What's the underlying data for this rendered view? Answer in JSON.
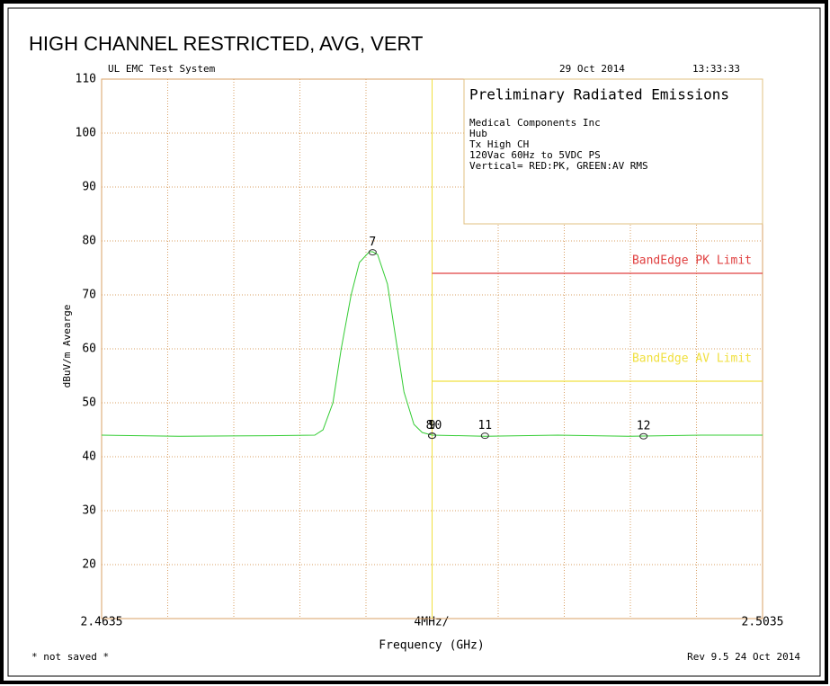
{
  "chart_data": {
    "type": "line",
    "title": "HIGH CHANNEL RESTRICTED, AVG, VERT",
    "system": "UL EMC Test System",
    "date": "29 Oct 2014",
    "time": "13:33:33",
    "info_box": {
      "title": "Preliminary Radiated Emissions",
      "lines": [
        "Medical Components Inc",
        "Hub",
        "Tx High CH",
        "120Vac 60Hz to 5VDC PS",
        "Vertical= RED:PK, GREEN:AV RMS"
      ]
    },
    "xlabel": "Frequency (GHz)",
    "ylabel": "dBuV/m Avearge",
    "span_label": "4MHz/",
    "footer_left": "* not saved *",
    "footer_right": "Rev 9.5 24 Oct 2014",
    "xlim": [
      2.4635,
      2.5035
    ],
    "ylim": [
      10,
      110
    ],
    "xticks": [
      2.4635,
      2.5035
    ],
    "xgrid": [
      2.4675,
      2.4715,
      2.4755,
      2.4795,
      2.4835,
      2.4875,
      2.4915,
      2.4955,
      2.4995
    ],
    "yticks": [
      20,
      30,
      40,
      50,
      60,
      70,
      80,
      90,
      100,
      110
    ],
    "grid": true,
    "grid_color": "#d9a066",
    "series": [
      {
        "color": "#33cc33",
        "x": [
          2.4635,
          2.4682,
          2.4737,
          2.4764,
          2.4769,
          2.4775,
          2.478,
          2.4786,
          2.4791,
          2.4797,
          2.4799,
          2.4802,
          2.4808,
          2.4813,
          2.4818,
          2.4824,
          2.4829,
          2.4835,
          2.4867,
          2.4911,
          2.4954,
          2.4998,
          2.5035
        ],
        "values": [
          44,
          43.8,
          43.9,
          44,
          45,
          50,
          60,
          70,
          76,
          78,
          78,
          77.5,
          72,
          62,
          52,
          46,
          44.5,
          44,
          43.8,
          44,
          43.8,
          44,
          44
        ]
      }
    ],
    "limits": [
      {
        "label": "BandEdge PK Limit",
        "value": 74,
        "start": 2.4835,
        "color": "#e04040"
      },
      {
        "label": "BandEdge AV Limit",
        "value": 54,
        "start": 2.4835,
        "color": "#f0e040"
      }
    ],
    "band_edge": {
      "x": 2.4835,
      "color": "#f0e040"
    },
    "markers": [
      {
        "label": "7",
        "x": 2.4799,
        "value": 77.9
      },
      {
        "label": "8",
        "x": 2.4835,
        "value": 43.9
      },
      {
        "label": "9",
        "x": 2.4835,
        "value": 43.9
      },
      {
        "label": "10",
        "x": 2.4835,
        "value": 43.9
      },
      {
        "label": "11",
        "x": 2.4867,
        "value": 43.9
      },
      {
        "label": "12",
        "x": 2.4963,
        "value": 43.8
      }
    ]
  }
}
